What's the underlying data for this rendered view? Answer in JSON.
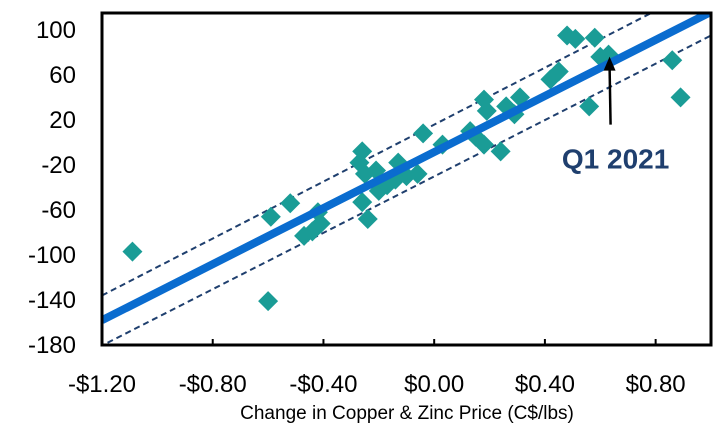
{
  "chart_data": {
    "type": "scatter",
    "title": "",
    "xlabel": "Change in Copper & Zinc Price (C$/lbs)",
    "ylabel": "",
    "xlim": [
      -1.2,
      1.0
    ],
    "ylim": [
      -180,
      115
    ],
    "x_ticks": [
      -1.2,
      -0.8,
      -0.4,
      0.0,
      0.4,
      0.8
    ],
    "x_tick_labels": [
      "-$1.20",
      "-$0.80",
      "-$0.40",
      "$0.00",
      "$0.40",
      "$0.80"
    ],
    "y_ticks": [
      100,
      60,
      20,
      -20,
      -60,
      -100,
      -140,
      -180
    ],
    "y_tick_labels": [
      "100",
      "60",
      "20",
      "-20",
      "-60",
      "-100",
      "-140",
      "-180"
    ],
    "grid": false,
    "colors": {
      "points": "#1a9c96",
      "trend": "#0a6ccf",
      "band": "#1f3f6e",
      "annotation": "#1f3f6e"
    },
    "points": [
      {
        "x": -1.09,
        "y": -97
      },
      {
        "x": -0.6,
        "y": -141
      },
      {
        "x": -0.59,
        "y": -66
      },
      {
        "x": -0.52,
        "y": -54
      },
      {
        "x": -0.47,
        "y": -83
      },
      {
        "x": -0.44,
        "y": -79
      },
      {
        "x": -0.42,
        "y": -62
      },
      {
        "x": -0.41,
        "y": -72
      },
      {
        "x": -0.26,
        "y": -8
      },
      {
        "x": -0.27,
        "y": -18
      },
      {
        "x": -0.25,
        "y": -28
      },
      {
        "x": -0.26,
        "y": -53
      },
      {
        "x": -0.24,
        "y": -68
      },
      {
        "x": -0.21,
        "y": -25
      },
      {
        "x": -0.2,
        "y": -43
      },
      {
        "x": -0.17,
        "y": -38
      },
      {
        "x": -0.14,
        "y": -33
      },
      {
        "x": -0.13,
        "y": -18
      },
      {
        "x": -0.1,
        "y": -30
      },
      {
        "x": -0.06,
        "y": -28
      },
      {
        "x": -0.04,
        "y": 8
      },
      {
        "x": 0.03,
        "y": -2
      },
      {
        "x": 0.13,
        "y": 10
      },
      {
        "x": 0.15,
        "y": 5
      },
      {
        "x": 0.18,
        "y": -2
      },
      {
        "x": 0.18,
        "y": 38
      },
      {
        "x": 0.19,
        "y": 28
      },
      {
        "x": 0.24,
        "y": -8
      },
      {
        "x": 0.26,
        "y": 32
      },
      {
        "x": 0.29,
        "y": 25
      },
      {
        "x": 0.31,
        "y": 40
      },
      {
        "x": 0.42,
        "y": 56
      },
      {
        "x": 0.45,
        "y": 63
      },
      {
        "x": 0.48,
        "y": 95
      },
      {
        "x": 0.51,
        "y": 92
      },
      {
        "x": 0.56,
        "y": 32
      },
      {
        "x": 0.58,
        "y": 93
      },
      {
        "x": 0.6,
        "y": 76
      },
      {
        "x": 0.63,
        "y": 78
      },
      {
        "x": 0.86,
        "y": 73
      },
      {
        "x": 0.89,
        "y": 40
      }
    ],
    "trendline": {
      "x": [
        -1.2,
        1.0
      ],
      "y": [
        -158,
        116
      ]
    },
    "bands": [
      {
        "x": [
          -1.2,
          0.8
        ],
        "y": [
          -136,
          117
        ]
      },
      {
        "x": [
          -1.18,
          1.0
        ],
        "y": [
          -178,
          95
        ]
      }
    ],
    "annotation": {
      "text": "Q1 2021",
      "point": {
        "x": 0.63,
        "y": 78
      }
    }
  }
}
